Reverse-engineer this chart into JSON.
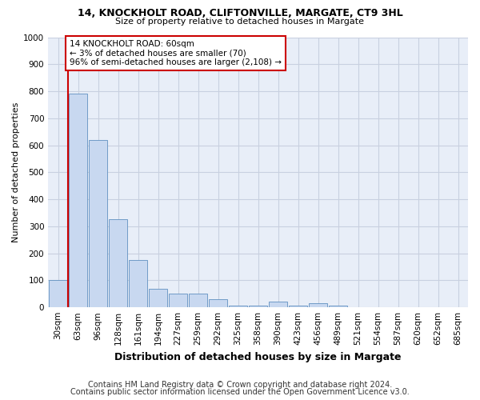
{
  "title1": "14, KNOCKHOLT ROAD, CLIFTONVILLE, MARGATE, CT9 3HL",
  "title2": "Size of property relative to detached houses in Margate",
  "xlabel": "Distribution of detached houses by size in Margate",
  "ylabel": "Number of detached properties",
  "footnote1": "Contains HM Land Registry data © Crown copyright and database right 2024.",
  "footnote2": "Contains public sector information licensed under the Open Government Licence v3.0.",
  "annotation_line1": "14 KNOCKHOLT ROAD: 60sqm",
  "annotation_line2": "← 3% of detached houses are smaller (70)",
  "annotation_line3": "96% of semi-detached houses are larger (2,108) →",
  "bar_labels": [
    "30sqm",
    "63sqm",
    "96sqm",
    "128sqm",
    "161sqm",
    "194sqm",
    "227sqm",
    "259sqm",
    "292sqm",
    "325sqm",
    "358sqm",
    "390sqm",
    "423sqm",
    "456sqm",
    "489sqm",
    "521sqm",
    "554sqm",
    "587sqm",
    "620sqm",
    "652sqm",
    "685sqm"
  ],
  "bar_values": [
    100,
    790,
    620,
    325,
    175,
    70,
    50,
    50,
    30,
    5,
    5,
    20,
    5,
    15,
    5,
    0,
    0,
    0,
    0,
    0,
    0
  ],
  "bar_color": "#c8d8f0",
  "bar_edge_color": "#6090c0",
  "marker_color": "#cc0000",
  "ylim": [
    0,
    1000
  ],
  "yticks": [
    0,
    100,
    200,
    300,
    400,
    500,
    600,
    700,
    800,
    900,
    1000
  ],
  "annotation_box_edge_color": "#cc0000",
  "plot_bg_color": "#e8eef8",
  "fig_bg_color": "#ffffff",
  "grid_color": "#c8d0e0",
  "title_fontsize": 9,
  "subtitle_fontsize": 8,
  "ylabel_fontsize": 8,
  "xlabel_fontsize": 9,
  "tick_fontsize": 7.5,
  "footnote_fontsize": 7
}
